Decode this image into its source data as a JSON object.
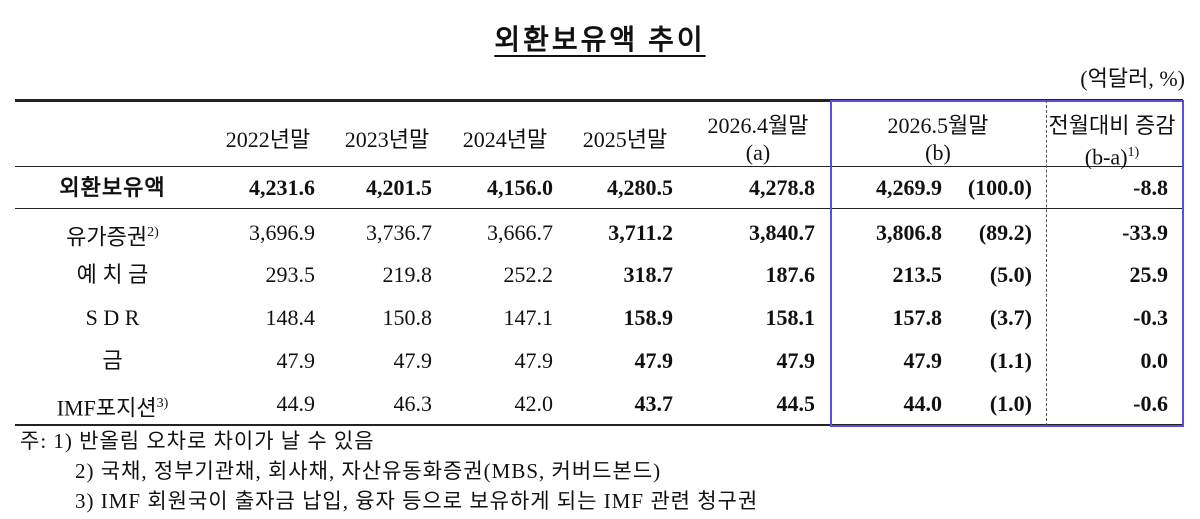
{
  "title": "외환보유액 추이",
  "unit": "(억달러, %)",
  "table": {
    "header": [
      {
        "lines": [
          "2022년말"
        ]
      },
      {
        "lines": [
          "2023년말"
        ]
      },
      {
        "lines": [
          "2024년말"
        ]
      },
      {
        "lines": [
          "2025년말"
        ]
      },
      {
        "lines": [
          "2026.4월말",
          "(a)"
        ]
      },
      {
        "lines": [
          "2026.5월말",
          "(b)"
        ]
      },
      {
        "lines": [
          "전월대비 증감",
          "(b-a)"
        ],
        "note": "1)"
      }
    ],
    "rows": [
      {
        "label": "외환보유액",
        "values": [
          "4,231.6",
          "4,201.5",
          "4,156.0",
          "4,280.5",
          "4,278.8",
          "4,269.9",
          "(100.0)",
          "-8.8"
        ]
      },
      {
        "label": "유가증권",
        "note": "2)",
        "values": [
          "3,696.9",
          "3,736.7",
          "3,666.7",
          "3,711.2",
          "3,840.7",
          "3,806.8",
          "(89.2)",
          "-33.9"
        ]
      },
      {
        "label": "예 치 금",
        "values": [
          "293.5",
          "219.8",
          "252.2",
          "318.7",
          "187.6",
          "213.5",
          "(5.0)",
          "25.9"
        ]
      },
      {
        "label": "S D R",
        "values": [
          "148.4",
          "150.8",
          "147.1",
          "158.9",
          "158.1",
          "157.8",
          "(3.7)",
          "-0.3"
        ]
      },
      {
        "label": "금",
        "values": [
          "47.9",
          "47.9",
          "47.9",
          "47.9",
          "47.9",
          "47.9",
          "(1.1)",
          "0.0"
        ]
      },
      {
        "label": "IMF포지션",
        "note": "3)",
        "values": [
          "44.9",
          "46.3",
          "42.0",
          "43.7",
          "44.5",
          "44.0",
          "(1.0)",
          "-0.6"
        ]
      }
    ]
  },
  "notes": [
    "주: 1) 반올림 오차로 차이가 날 수 있음",
    "2) 국채, 정부기관채, 회사채, 자산유동화증권(MBS, 커버드본드)",
    "3) IMF 회원국이 출자금 납입, 융자 등으로 보유하게 되는 IMF 관련 청구권"
  ]
}
